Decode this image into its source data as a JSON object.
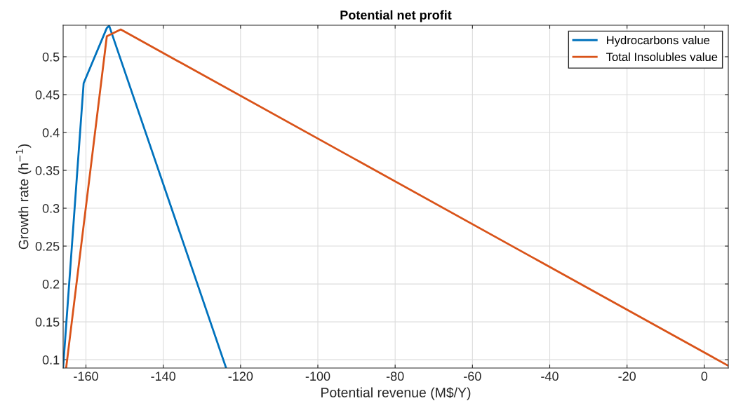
{
  "chart_data": {
    "type": "line",
    "title": "Potential net profit",
    "xlabel": "Potential revenue (M$/Y)",
    "ylabel": "Growth rate (h$^{−1}$)",
    "series": [
      {
        "name": "Hydrocarbons value",
        "color": "#0072bd",
        "x": [
          -165.9,
          -160.6,
          -154.6,
          -154.0,
          -123.8
        ],
        "values": [
          0.09,
          0.465,
          0.538,
          0.541,
          0.09
        ]
      },
      {
        "name": "Total Insolubles value",
        "color": "#d95319",
        "x": [
          -165.1,
          -154.6,
          -151.0,
          6.2
        ],
        "values": [
          0.09,
          0.527,
          0.536,
          0.092
        ]
      }
    ],
    "xlim": [
      -165.9,
      6.2
    ],
    "ylim": [
      0.089,
      0.5416
    ],
    "xticks": [
      -160,
      -140,
      -120,
      -100,
      -80,
      -60,
      -40,
      -20,
      0
    ],
    "yticks": [
      0.1,
      0.15,
      0.2,
      0.25,
      0.3,
      0.35,
      0.4,
      0.45,
      0.5
    ],
    "grid": true,
    "legend": "top right"
  }
}
